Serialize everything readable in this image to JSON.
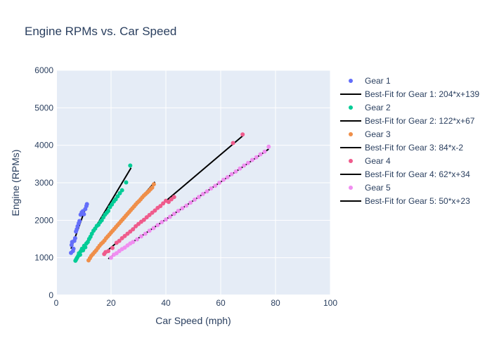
{
  "chart_data": {
    "type": "scatter",
    "title": "Engine RPMs vs. Car Speed",
    "xlabel": "Car Speed (mph)",
    "ylabel": "Engine (RPMs)",
    "xlim": [
      0,
      100
    ],
    "ylim": [
      0,
      6000
    ],
    "xticks": [
      "0",
      "20",
      "40",
      "60",
      "80",
      "100"
    ],
    "yticks": [
      "0",
      "1000",
      "2000",
      "3000",
      "4000",
      "5000",
      "6000"
    ],
    "grid": true,
    "legend_position": "right",
    "colors": {
      "plot_bg": "#e5ecf6",
      "grid": "#ffffff",
      "text": "#2a3f5f",
      "fit_line": "#000000"
    },
    "series": [
      {
        "name": "Gear 1",
        "color": "#636efa",
        "x": [
          5.4,
          5.6,
          5.8,
          6.1,
          6.3,
          6.6,
          6.9,
          7.2,
          7.5,
          7.8,
          8.2,
          8.5,
          8.9,
          9.3,
          9.7,
          10.1,
          10.6,
          11.0,
          11.2
        ],
        "y": [
          1130,
          1340,
          1420,
          1180,
          1240,
          1450,
          1520,
          1700,
          1760,
          1840,
          1920,
          1980,
          2150,
          2210,
          2240,
          2160,
          2300,
          2380,
          2430
        ],
        "fit": {
          "name": "Best-Fit for Gear 1: 204*x+139",
          "slope": 204,
          "intercept": 139,
          "x_range": [
            5.4,
            11.2
          ]
        }
      },
      {
        "name": "Gear 2",
        "color": "#00cc96",
        "x": [
          7.0,
          7.3,
          7.6,
          8.0,
          8.3,
          8.7,
          9.0,
          9.4,
          9.8,
          10.2,
          10.6,
          11.0,
          11.5,
          12.0,
          12.5,
          13.0,
          13.6,
          14.2,
          14.8,
          15.4,
          16.0,
          16.6,
          17.2,
          17.8,
          18.4,
          19.0,
          19.6,
          20.3,
          21.0,
          21.7,
          22.4,
          23.2,
          24.0,
          25.5,
          27.0
        ],
        "y": [
          920,
          960,
          1000,
          1050,
          1120,
          1080,
          1180,
          1240,
          1200,
          1320,
          1280,
          1380,
          1420,
          1500,
          1560,
          1640,
          1720,
          1780,
          1850,
          1880,
          1950,
          2000,
          2080,
          2150,
          2200,
          2250,
          2350,
          2420,
          2500,
          2560,
          2640,
          2720,
          2800,
          3010,
          3460
        ],
        "fit": {
          "name": "Best-Fit for Gear 2: 122*x+67",
          "slope": 122,
          "intercept": 67,
          "x_range": [
            6.8,
            27.3
          ]
        }
      },
      {
        "name": "Gear 3",
        "color": "#ef8f4a",
        "x": [
          11.8,
          12.3,
          12.8,
          13.4,
          14.0,
          14.6,
          15.2,
          15.8,
          16.4,
          17.0,
          17.6,
          18.2,
          18.8,
          19.4,
          20.0,
          20.6,
          21.2,
          21.8,
          22.4,
          23.0,
          23.6,
          24.2,
          24.8,
          25.4,
          26.0,
          26.6,
          27.2,
          27.8,
          28.4,
          29.0,
          29.6,
          30.2,
          30.8,
          31.4,
          32.0,
          32.6,
          33.2,
          33.8,
          34.4,
          35.0,
          35.6
        ],
        "y": [
          930,
          990,
          1050,
          1100,
          1150,
          1200,
          1260,
          1320,
          1370,
          1410,
          1460,
          1520,
          1570,
          1620,
          1670,
          1720,
          1770,
          1820,
          1870,
          1920,
          1970,
          2020,
          2070,
          2120,
          2170,
          2220,
          2270,
          2320,
          2370,
          2420,
          2470,
          2510,
          2560,
          2610,
          2660,
          2700,
          2740,
          2780,
          2830,
          2870,
          2960
        ],
        "fit": {
          "name": "Best-Fit for Gear 3: 84*x-2",
          "slope": 84,
          "intercept": -2,
          "x_range": [
            11.8,
            36.0
          ]
        }
      },
      {
        "name": "Gear 4",
        "color": "#ef5b8c",
        "x": [
          17.5,
          18.0,
          19.0,
          20.5,
          22.0,
          23.0,
          24.0,
          25.0,
          26.0,
          27.0,
          28.0,
          29.0,
          30.0,
          31.0,
          32.0,
          33.0,
          34.0,
          35.0,
          36.0,
          37.0,
          38.0,
          39.0,
          40.0,
          41.0,
          42.0,
          43.0,
          64.5,
          68.0
        ],
        "y": [
          1100,
          1150,
          1180,
          1260,
          1400,
          1450,
          1520,
          1580,
          1640,
          1700,
          1760,
          1840,
          1900,
          1960,
          2010,
          2080,
          2140,
          2200,
          2260,
          2330,
          2380,
          2450,
          2520,
          2490,
          2560,
          2620,
          4060,
          4290
        ],
        "fit": {
          "name": "Best-Fit for Gear 4: 62*x+34",
          "slope": 62,
          "intercept": 34,
          "x_range": [
            17.4,
            68.0
          ]
        }
      },
      {
        "name": "Gear 5",
        "color": "#f08ef0",
        "x": [
          20.0,
          21.0,
          22.0,
          23.0,
          24.0,
          25.0,
          26.0,
          27.0,
          28.0,
          29.5,
          31.0,
          32.5,
          34.0,
          35.5,
          37.0,
          38.5,
          40.0,
          41.5,
          43.0,
          44.5,
          46.0,
          47.5,
          49.0,
          50.5,
          52.0,
          53.5,
          55.0,
          56.5,
          58.0,
          59.5,
          61.0,
          62.5,
          64.0,
          65.5,
          67.0,
          68.5,
          70.0,
          71.5,
          73.0,
          74.5,
          76.0,
          77.5
        ],
        "y": [
          1000,
          1080,
          1120,
          1180,
          1230,
          1270,
          1330,
          1380,
          1420,
          1490,
          1570,
          1640,
          1720,
          1790,
          1870,
          1950,
          2020,
          2090,
          2170,
          2250,
          2320,
          2390,
          2470,
          2550,
          2620,
          2700,
          2770,
          2850,
          2920,
          3000,
          3080,
          3150,
          3230,
          3300,
          3380,
          3460,
          3530,
          3610,
          3680,
          3760,
          3830,
          3960
        ],
        "fit": {
          "name": "Best-Fit for Gear 5: 50*x+23",
          "slope": 50,
          "intercept": 23,
          "x_range": [
            19.0,
            77.5
          ]
        }
      }
    ]
  }
}
